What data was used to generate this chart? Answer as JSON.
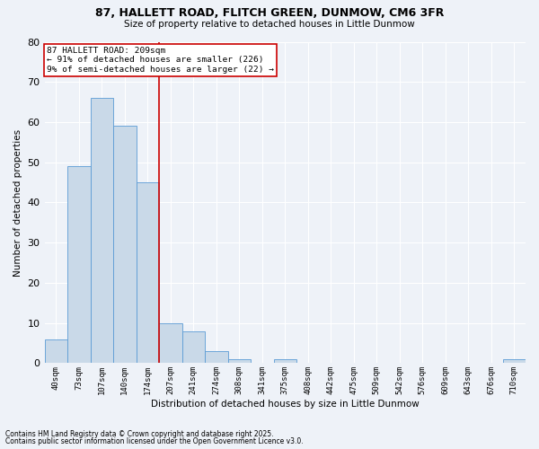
{
  "title1": "87, HALLETT ROAD, FLITCH GREEN, DUNMOW, CM6 3FR",
  "title2": "Size of property relative to detached houses in Little Dunmow",
  "xlabel": "Distribution of detached houses by size in Little Dunmow",
  "ylabel": "Number of detached properties",
  "bar_color": "#c9d9e8",
  "bar_edge_color": "#5b9bd5",
  "categories": [
    "40sqm",
    "73sqm",
    "107sqm",
    "140sqm",
    "174sqm",
    "207sqm",
    "241sqm",
    "274sqm",
    "308sqm",
    "341sqm",
    "375sqm",
    "408sqm",
    "442sqm",
    "475sqm",
    "509sqm",
    "542sqm",
    "576sqm",
    "609sqm",
    "643sqm",
    "676sqm",
    "710sqm"
  ],
  "values": [
    6,
    49,
    66,
    59,
    45,
    10,
    8,
    3,
    1,
    0,
    1,
    0,
    0,
    0,
    0,
    0,
    0,
    0,
    0,
    0,
    1
  ],
  "ylim": [
    0,
    80
  ],
  "yticks": [
    0,
    10,
    20,
    30,
    40,
    50,
    60,
    70,
    80
  ],
  "property_line_bin": 5,
  "annotation_text": "87 HALLETT ROAD: 209sqm\n← 91% of detached houses are smaller (226)\n9% of semi-detached houses are larger (22) →",
  "annotation_box_color": "#ffffff",
  "annotation_border_color": "#cc0000",
  "vline_color": "#cc0000",
  "background_color": "#eef2f8",
  "grid_color": "#ffffff",
  "footer1": "Contains HM Land Registry data © Crown copyright and database right 2025.",
  "footer2": "Contains public sector information licensed under the Open Government Licence v3.0."
}
